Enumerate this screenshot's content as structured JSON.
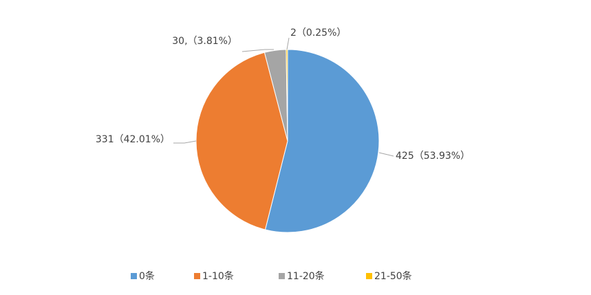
{
  "chart_data": {
    "type": "pie",
    "categories": [
      "0条",
      "1-10条",
      "11-20条",
      "21-50条"
    ],
    "values": [
      425,
      331,
      30,
      2
    ],
    "value_labels": [
      "425（53.93%）",
      "331（42.01%）",
      "30,（3.81%）",
      "2（0.25%）"
    ],
    "colors": [
      "#5b9bd5",
      "#ed7d31",
      "#a5a5a5",
      "#ffc000"
    ],
    "legend": "bottom"
  }
}
